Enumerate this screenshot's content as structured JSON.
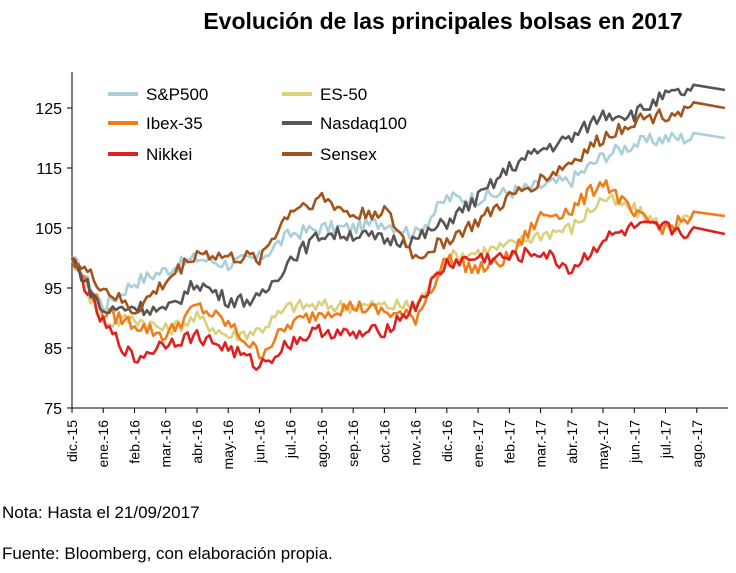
{
  "chart_data": {
    "type": "line",
    "title": "Evolución de las principales bolsas en 2017",
    "xlabel": "",
    "ylabel": "",
    "ylim": [
      75,
      130
    ],
    "yticks": [
      75,
      85,
      95,
      105,
      115,
      125
    ],
    "categories": [
      "dic.-15",
      "ene.-16",
      "feb.-16",
      "mar.-16",
      "abr.-16",
      "may.-16",
      "jun.-16",
      "jul.-16",
      "ago.-16",
      "sep.-16",
      "oct.-16",
      "nov.-16",
      "dic.-16",
      "ene.-17",
      "feb.-17",
      "mar.-17",
      "abr.-17",
      "may.-17",
      "jun.-17",
      "jul.-17",
      "ago.-17"
    ],
    "series": [
      {
        "name": "S&P500",
        "color": "#a9cfd9",
        "values": [
          100,
          92,
          96,
          98,
          100,
          99,
          100,
          104,
          105,
          105,
          106,
          104,
          110,
          110,
          111,
          112,
          113,
          117,
          119,
          120,
          120
        ]
      },
      {
        "name": "ES-50",
        "color": "#dcd07e",
        "values": [
          100,
          89,
          90,
          88,
          90,
          87,
          88,
          92,
          92,
          92,
          92,
          92,
          100,
          101,
          102,
          104,
          105,
          110,
          108,
          105,
          107
        ]
      },
      {
        "name": "Ibex-35",
        "color": "#ef7e1a",
        "values": [
          100,
          91,
          89,
          87,
          92,
          89,
          84,
          89,
          91,
          92,
          91,
          90,
          100,
          98,
          100,
          107,
          108,
          113,
          107,
          105,
          107
        ]
      },
      {
        "name": "Nasdaq100",
        "color": "#585552",
        "values": [
          100,
          91,
          92,
          91,
          96,
          93,
          93,
          100,
          104,
          104,
          103,
          103,
          106,
          110,
          115,
          118,
          120,
          124,
          124,
          127,
          128
        ]
      },
      {
        "name": "Nikkei",
        "color": "#e02020",
        "values": [
          100,
          89,
          83,
          86,
          87,
          85,
          82,
          86,
          88,
          87,
          88,
          92,
          99,
          100,
          100,
          101,
          98,
          103,
          105,
          105,
          104
        ]
      },
      {
        "name": "Sensex",
        "color": "#a3541c",
        "values": [
          100,
          95,
          91,
          96,
          101,
          100,
          100,
          108,
          110,
          107,
          108,
          100,
          103,
          106,
          110,
          113,
          116,
          120,
          123,
          124,
          125
        ]
      }
    ]
  },
  "legend": [
    {
      "label": "S&P500",
      "color": "#a9cfd9"
    },
    {
      "label": "ES-50",
      "color": "#dcd07e"
    },
    {
      "label": "Ibex-35",
      "color": "#ef7e1a"
    },
    {
      "label": "Nasdaq100",
      "color": "#585552"
    },
    {
      "label": "Nikkei",
      "color": "#e02020"
    },
    {
      "label": "Sensex",
      "color": "#a3541c"
    }
  ],
  "note": "Nota: Hasta el 21/09/2017",
  "source": "Fuente: Bloomberg, con elaboración propia."
}
